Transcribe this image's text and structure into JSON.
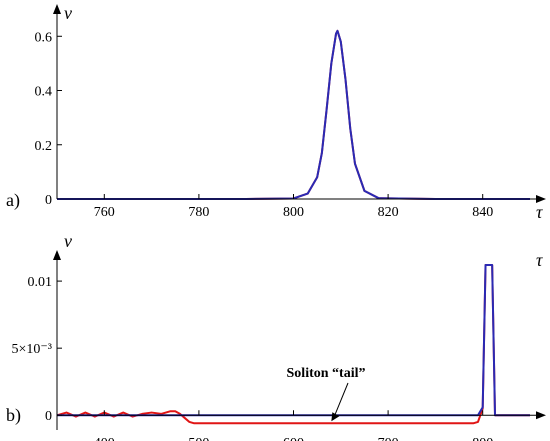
{
  "chart_data": [
    {
      "panel_label": "a)",
      "type": "line",
      "xlabel": "τ",
      "ylabel": "v",
      "xlim": [
        750,
        850
      ],
      "ylim": [
        0,
        0.66
      ],
      "x_ticks": [
        760,
        780,
        800,
        820,
        840
      ],
      "x_tick_labels": [
        "760",
        "780",
        "800",
        "820",
        "840"
      ],
      "y_ticks": [
        0,
        0.2,
        0.4,
        0.6
      ],
      "y_tick_labels": [
        "0",
        "0.2",
        "0.4",
        "0.6"
      ],
      "series": [
        {
          "color": "#d42020",
          "x": [
            750,
            790,
            800,
            803,
            805,
            806,
            807,
            808,
            809,
            809.3,
            810,
            811,
            812,
            813,
            815,
            818,
            830,
            850
          ],
          "y": [
            0,
            0,
            0.002,
            0.02,
            0.08,
            0.17,
            0.33,
            0.5,
            0.61,
            0.62,
            0.58,
            0.44,
            0.26,
            0.13,
            0.03,
            0.003,
            0,
            0
          ]
        },
        {
          "color": "#2a2ab4",
          "x": [
            750,
            790,
            800,
            803,
            805,
            806,
            807,
            808,
            809,
            809.3,
            810,
            811,
            812,
            813,
            815,
            818,
            830,
            850
          ],
          "y": [
            0,
            0,
            0.002,
            0.02,
            0.08,
            0.17,
            0.33,
            0.5,
            0.61,
            0.62,
            0.58,
            0.44,
            0.26,
            0.13,
            0.03,
            0.003,
            0,
            0
          ]
        }
      ]
    },
    {
      "panel_label": "b)",
      "type": "line",
      "xlabel": "τ",
      "ylabel": "v",
      "xlim": [
        350,
        850
      ],
      "ylim": [
        -0.0011,
        0.0112
      ],
      "x_ticks": [
        400,
        500,
        600,
        700,
        800
      ],
      "x_tick_labels": [
        "400",
        "500",
        "600",
        "700",
        "800"
      ],
      "y_ticks": [
        0,
        0.005,
        0.01
      ],
      "y_tick_labels": [
        "0",
        "5×10⁻³",
        "0.01"
      ],
      "annotation": "Soliton “tail”",
      "series": [
        {
          "color": "#e01515",
          "x": [
            350,
            360,
            370,
            380,
            390,
            400,
            410,
            420,
            430,
            440,
            450,
            460,
            470,
            475,
            480,
            485,
            490,
            495,
            500,
            550,
            600,
            650,
            700,
            750,
            780,
            790,
            795,
            800,
            803,
            806,
            810,
            813,
            820,
            850
          ],
          "y": [
            0,
            0.0002,
            -0.0001,
            0.0002,
            -0.0001,
            0.0002,
            -0.0001,
            0.0002,
            -0.0001,
            0.0001,
            0.0002,
            0.0001,
            0.0003,
            0.0003,
            0.0001,
            -0.0002,
            -0.0005,
            -0.0006,
            -0.0006,
            -0.0006,
            -0.0006,
            -0.0006,
            -0.0006,
            -0.0006,
            -0.0006,
            -0.0006,
            -0.0005,
            0.0005,
            0.0112,
            0.0112,
            0.0112,
            0.0,
            0,
            0
          ]
        },
        {
          "color": "#2a2ab4",
          "x": [
            350,
            780,
            795,
            800,
            803,
            806,
            810,
            813,
            820,
            850
          ],
          "y": [
            0,
            0,
            0,
            0.0006,
            0.0112,
            0.0112,
            0.0112,
            0.0,
            0,
            0
          ]
        }
      ]
    }
  ]
}
